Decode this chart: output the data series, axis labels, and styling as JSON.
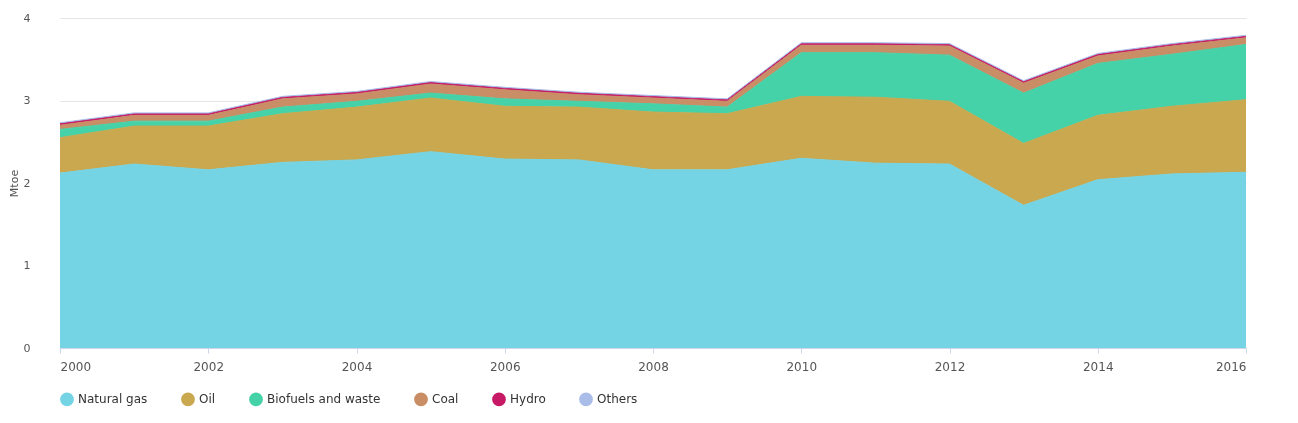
{
  "chart_data": {
    "type": "area",
    "ylabel": "Mtoe",
    "stacked": true,
    "grid": "y",
    "legend": "bottom",
    "x": [
      2000,
      2001,
      2002,
      2003,
      2004,
      2005,
      2006,
      2007,
      2008,
      2009,
      2010,
      2011,
      2012,
      2013,
      2014,
      2015,
      2016
    ],
    "xlim": [
      2000,
      2016
    ],
    "xticks": [
      2000,
      2002,
      2004,
      2006,
      2008,
      2010,
      2012,
      2014,
      2016
    ],
    "ylim": [
      0,
      4
    ],
    "yticks": [
      0,
      1,
      2,
      3,
      4
    ],
    "series": [
      {
        "name": "Natural gas",
        "color": "#74d4e4",
        "values": [
          2.12,
          2.23,
          2.16,
          2.25,
          2.28,
          2.38,
          2.29,
          2.28,
          2.16,
          2.16,
          2.3,
          2.24,
          2.23,
          1.73,
          2.04,
          2.11,
          2.13
        ]
      },
      {
        "name": "Oil",
        "color": "#c9a84f",
        "values": [
          0.43,
          0.46,
          0.53,
          0.59,
          0.64,
          0.65,
          0.64,
          0.64,
          0.7,
          0.68,
          0.75,
          0.8,
          0.76,
          0.75,
          0.78,
          0.82,
          0.88
        ]
      },
      {
        "name": "Biofuels and waste",
        "color": "#45d2a8",
        "values": [
          0.1,
          0.06,
          0.06,
          0.08,
          0.07,
          0.06,
          0.09,
          0.07,
          0.1,
          0.08,
          0.53,
          0.54,
          0.56,
          0.61,
          0.63,
          0.63,
          0.67
        ]
      },
      {
        "name": "Coal",
        "color": "#c98e65",
        "values": [
          0.05,
          0.07,
          0.07,
          0.1,
          0.09,
          0.11,
          0.11,
          0.08,
          0.07,
          0.07,
          0.09,
          0.09,
          0.11,
          0.12,
          0.09,
          0.1,
          0.08
        ]
      },
      {
        "name": "Hydro",
        "color": "#c71a66",
        "values": [
          0.02,
          0.02,
          0.02,
          0.02,
          0.02,
          0.02,
          0.02,
          0.02,
          0.02,
          0.02,
          0.02,
          0.02,
          0.02,
          0.02,
          0.02,
          0.02,
          0.02
        ]
      },
      {
        "name": "Others",
        "color": "#a9bde8",
        "values": [
          0.01,
          0.01,
          0.01,
          0.01,
          0.01,
          0.01,
          0.01,
          0.01,
          0.01,
          0.01,
          0.01,
          0.01,
          0.01,
          0.01,
          0.01,
          0.01,
          0.01
        ]
      }
    ]
  }
}
